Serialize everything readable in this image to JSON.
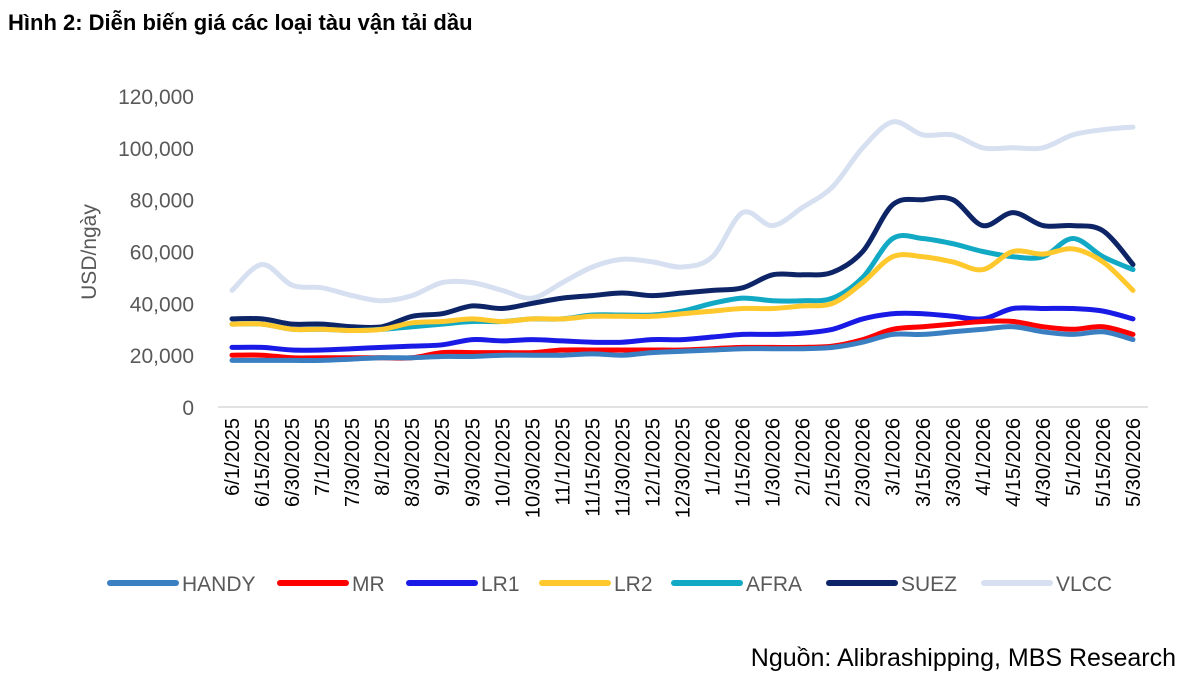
{
  "figure": {
    "title": "Hình 2:  Diễn biến giá các loại tàu vận tải dầu",
    "source": "Nguồn: Alibrashipping, MBS Research"
  },
  "chart_data": {
    "type": "line",
    "title": "",
    "xlabel": "",
    "ylabel": "USD/ngày",
    "ylim": [
      0,
      120000
    ],
    "yticks": [
      "0",
      "20,000",
      "40,000",
      "60,000",
      "80,000",
      "100,000",
      "120,000"
    ],
    "grid": false,
    "legend_position": "bottom",
    "x": [
      "6/1/2025",
      "6/15/2025",
      "6/30/2025",
      "7/1/2025",
      "7/30/2025",
      "8/1/2025",
      "8/30/2025",
      "9/1/2025",
      "9/30/2025",
      "10/1/2025",
      "10/30/2025",
      "11/1/2025",
      "11/15/2025",
      "11/30/2025",
      "12/1/2025",
      "12/30/2025",
      "1/1/2026",
      "1/15/2026",
      "1/30/2026",
      "2/1/2026",
      "2/15/2026",
      "2/30/2026",
      "3/1/2026",
      "3/15/2026",
      "3/30/2026",
      "4/1/2026",
      "4/15/2026",
      "4/30/2026",
      "5/1/2026",
      "5/15/2026",
      "5/30/2026"
    ],
    "series": [
      {
        "name": "HANDY",
        "color": "#3a7fc1",
        "values": [
          18000,
          18000,
          18000,
          18000,
          18500,
          19000,
          19000,
          19500,
          19500,
          20000,
          20000,
          20000,
          20500,
          20000,
          21000,
          21500,
          22000,
          22500,
          22500,
          22500,
          23000,
          25000,
          28000,
          28000,
          29000,
          30000,
          31000,
          29000,
          28000,
          29000,
          26000
        ]
      },
      {
        "name": "MR",
        "color": "#ff0000",
        "values": [
          20000,
          20000,
          19000,
          19000,
          19000,
          19000,
          19000,
          21000,
          21000,
          21000,
          21000,
          22000,
          22000,
          22000,
          22000,
          22000,
          22500,
          23000,
          23000,
          23000,
          23500,
          26000,
          30000,
          31000,
          32000,
          33000,
          33000,
          31000,
          30000,
          31000,
          28000
        ]
      },
      {
        "name": "LR1",
        "color": "#1a1ae6",
        "values": [
          23000,
          23000,
          22000,
          22000,
          22500,
          23000,
          23500,
          24000,
          26000,
          25500,
          26000,
          25500,
          25000,
          25000,
          26000,
          26000,
          27000,
          28000,
          28000,
          28500,
          30000,
          34000,
          36000,
          36000,
          35000,
          34000,
          38000,
          38000,
          38000,
          37000,
          34000
        ]
      },
      {
        "name": "LR2",
        "color": "#ffc82c",
        "values": [
          32000,
          32000,
          30000,
          30000,
          29500,
          30000,
          32500,
          33000,
          34000,
          33000,
          34000,
          34000,
          35000,
          35000,
          35000,
          36000,
          37000,
          38000,
          38000,
          39000,
          40000,
          48000,
          58000,
          58000,
          56000,
          53000,
          60000,
          59000,
          61000,
          56000,
          45000
        ]
      },
      {
        "name": "AFRA",
        "color": "#12a9c4",
        "values": [
          32000,
          32000,
          30000,
          30000,
          29500,
          30000,
          31000,
          32000,
          33000,
          33000,
          34000,
          34000,
          35500,
          35500,
          35500,
          37000,
          40000,
          42000,
          41000,
          41000,
          42000,
          50000,
          65000,
          65000,
          63000,
          60000,
          58000,
          58000,
          65000,
          58000,
          53000
        ]
      },
      {
        "name": "SUEZ",
        "color": "#0d2566",
        "values": [
          34000,
          34000,
          32000,
          32000,
          31000,
          31000,
          35000,
          36000,
          39000,
          38000,
          40000,
          42000,
          43000,
          44000,
          43000,
          44000,
          45000,
          46000,
          51000,
          51000,
          52000,
          60000,
          78000,
          80000,
          80000,
          70000,
          75000,
          70000,
          70000,
          68000,
          55000
        ]
      },
      {
        "name": "VLCC",
        "color": "#d6e0f1",
        "values": [
          45000,
          55000,
          47000,
          46000,
          43000,
          41000,
          43000,
          48000,
          48000,
          45000,
          42000,
          48000,
          54000,
          57000,
          56000,
          54000,
          58000,
          75000,
          70000,
          77000,
          85000,
          100000,
          110000,
          105000,
          105000,
          100000,
          100000,
          100000,
          105000,
          107000,
          108000
        ]
      }
    ]
  }
}
